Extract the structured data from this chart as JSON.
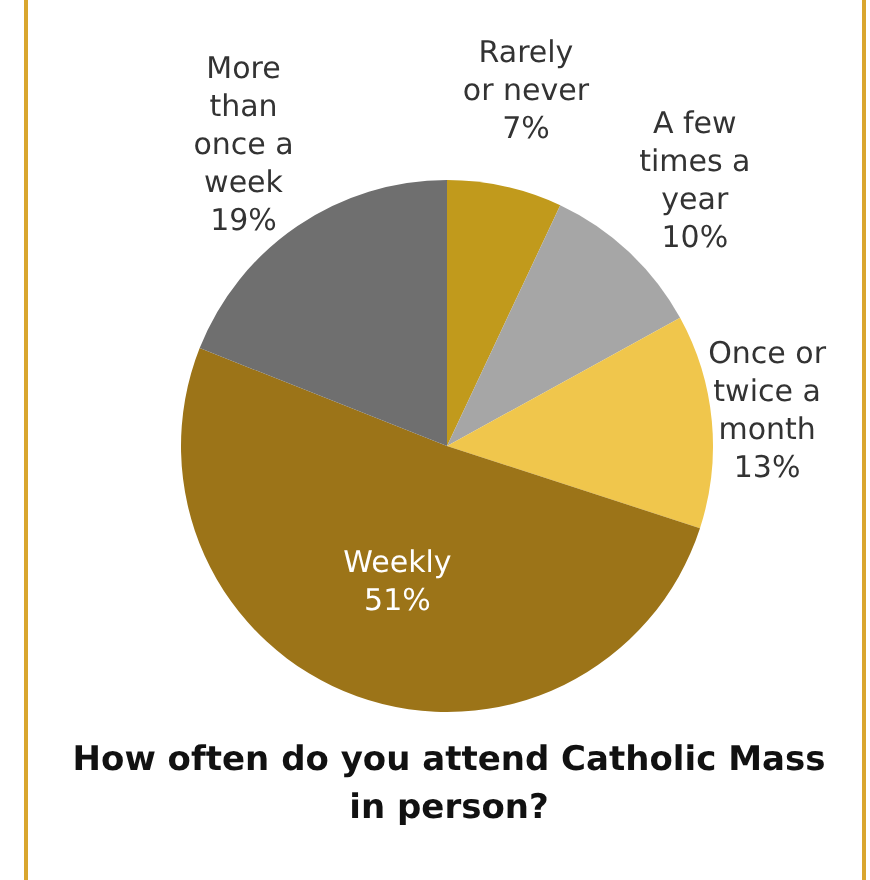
{
  "chart_data": {
    "type": "pie",
    "title": "How often do you attend Catholic Mass in person?",
    "categories": [
      "Rarely or never",
      "A few times a year",
      "Once or twice a month",
      "Weekly",
      "More than once a week"
    ],
    "values": [
      7,
      10,
      13,
      51,
      19
    ],
    "value_labels": [
      "7%",
      "10%",
      "13%",
      "51%",
      "19%"
    ],
    "colors": [
      "#c19a1c",
      "#a6a6a6",
      "#f0c64c",
      "#9c7418",
      "#6f6f6f"
    ],
    "legend": false
  }
}
